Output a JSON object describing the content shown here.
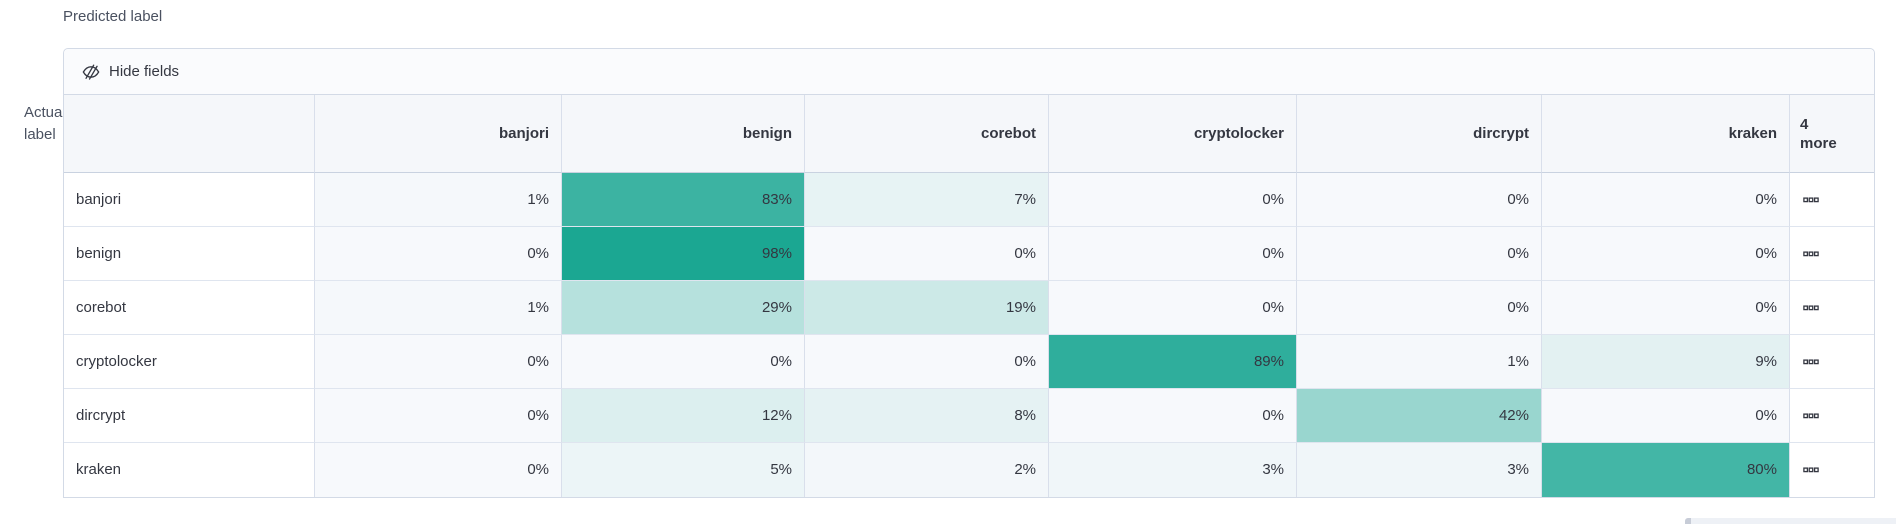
{
  "axis": {
    "predicted": "Predicted label",
    "actual": "Actual label"
  },
  "toolbar": {
    "hide_fields_label": "Hide fields",
    "icon": "eye-closed-icon"
  },
  "matrix": {
    "type": "heatmap",
    "unit": "%",
    "columns": [
      "banjori",
      "benign",
      "corebot",
      "cryptolocker",
      "dircrypt",
      "kraken"
    ],
    "more_column_label": "4 more",
    "row_actions_icon": "boxes-horizontal-icon",
    "rows": [
      {
        "label": "banjori",
        "values": [
          1,
          83,
          7,
          0,
          0,
          0
        ]
      },
      {
        "label": "benign",
        "values": [
          0,
          98,
          0,
          0,
          0,
          0
        ]
      },
      {
        "label": "corebot",
        "values": [
          1,
          29,
          19,
          0,
          0,
          0
        ]
      },
      {
        "label": "cryptolocker",
        "values": [
          0,
          0,
          0,
          89,
          1,
          9
        ]
      },
      {
        "label": "dircrypt",
        "values": [
          0,
          12,
          8,
          0,
          42,
          0
        ]
      },
      {
        "label": "kraken",
        "values": [
          0,
          5,
          2,
          3,
          3,
          80
        ]
      }
    ],
    "colors": {
      "cell_base": "#16A590",
      "cell_zero": "#F7F9FC",
      "text": "#343741"
    }
  }
}
